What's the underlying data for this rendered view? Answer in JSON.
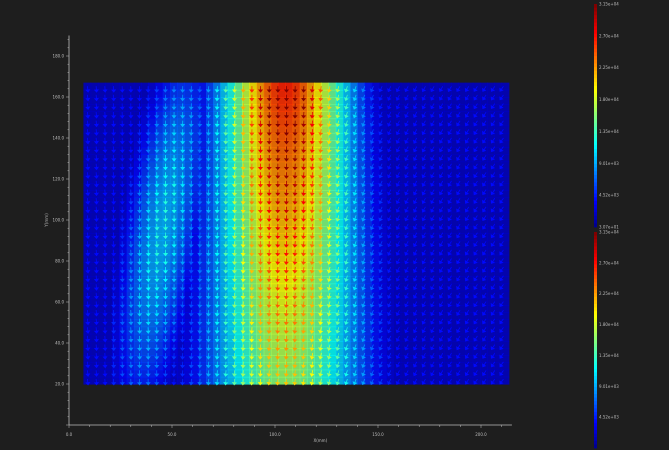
{
  "chart_data": {
    "type": "heatmap",
    "subtype": "vector-field",
    "xlabel": "X(mm)",
    "ylabel": "Y(mm)",
    "xlim": [
      0,
      210
    ],
    "ylim": [
      0,
      190
    ],
    "xticks": [
      "0.0",
      "50.0",
      "100.0",
      "150.0",
      "200.0"
    ],
    "yticks": [
      "20.0",
      "40.0",
      "60.0",
      "80.0",
      "100.0",
      "120.0",
      "140.0",
      "160.0",
      "180.0"
    ],
    "grid": false,
    "colormap": "jet",
    "field_extent": {
      "x": [
        7,
        213
      ],
      "y": [
        20,
        166
      ]
    },
    "jet_center_x": 105,
    "colorbars": [
      {
        "labels": [
          "3.15e+04",
          "2.70e+04",
          "2.25e+04",
          "1.80e+04",
          "1.35e+04",
          "9.01e+03",
          "4.52e+03",
          "3.07e+01"
        ],
        "range": [
          30.7,
          31500
        ]
      },
      {
        "labels": [
          "3.15e+04",
          "2.70e+04",
          "2.25e+04",
          "1.80e+04",
          "1.35e+04",
          "9.01e+03",
          "4.52e+03"
        ],
        "range": [
          30.7,
          31500
        ]
      }
    ]
  },
  "colors": {
    "background": "#1e1e1e",
    "axis": "#bdbdbd"
  }
}
